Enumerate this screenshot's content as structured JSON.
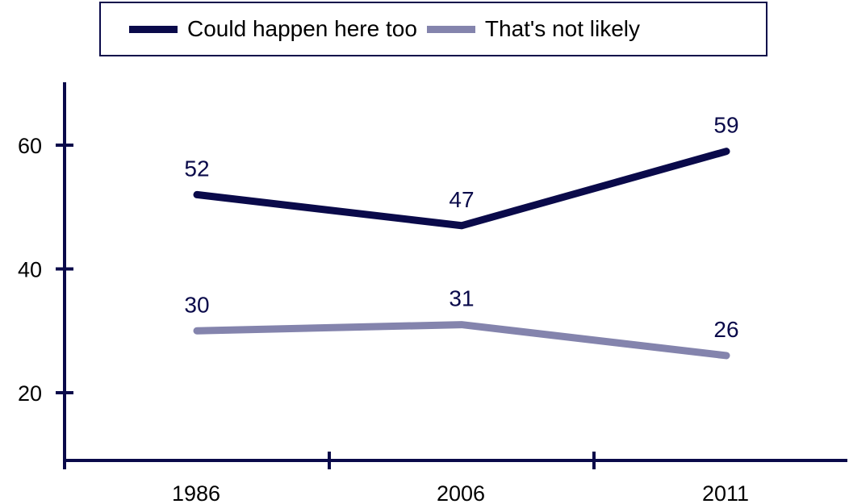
{
  "colors": {
    "series1": "#0a0a4a",
    "series2": "#8484ad",
    "axis": "#0a0a4a",
    "label": "#0a0a4a"
  },
  "legend": {
    "items": [
      {
        "label": "Could happen here too"
      },
      {
        "label": "That's not likely"
      }
    ]
  },
  "chart_data": {
    "type": "line",
    "categories": [
      "1986",
      "2006",
      "2011"
    ],
    "series": [
      {
        "name": "Could happen here too",
        "values": [
          52,
          47,
          59
        ]
      },
      {
        "name": "That's not likely",
        "values": [
          30,
          31,
          26
        ]
      }
    ],
    "yticks": [
      20,
      40,
      60
    ],
    "ylim": [
      10,
      70
    ],
    "grid": false,
    "legend_position": "top"
  }
}
